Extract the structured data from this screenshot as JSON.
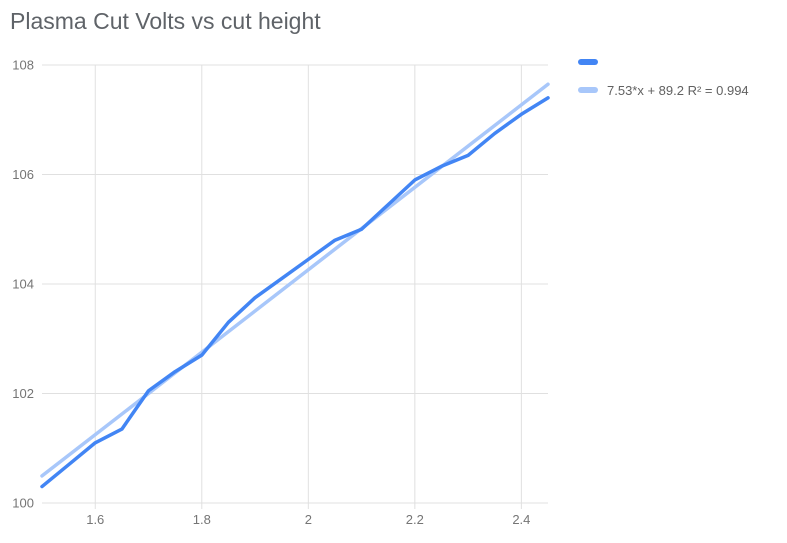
{
  "title": "Plasma Cut Volts vs cut height",
  "colors": {
    "series": "#4285f4",
    "trendline": "#a8c7fa",
    "grid": "#e0e0e0",
    "axis_text": "#757575",
    "title_text": "#5f6368",
    "background": "#ffffff"
  },
  "legend": {
    "position": "right",
    "items": [
      {
        "label": "",
        "color": "#4285f4"
      },
      {
        "label": "7.53*x + 89.2 R² = 0.994",
        "color": "#a8c7fa"
      }
    ]
  },
  "chart_data": {
    "type": "line",
    "title": "Plasma Cut Volts vs cut height",
    "xlabel": "",
    "ylabel": "",
    "xlim": [
      1.5,
      2.45
    ],
    "ylim": [
      100,
      108
    ],
    "x_ticks": [
      1.6,
      1.8,
      2,
      2.2,
      2.4
    ],
    "x_tick_labels": [
      "1.6",
      "1.8",
      "2",
      "2.2",
      "2.4"
    ],
    "y_ticks": [
      100,
      102,
      104,
      106,
      108
    ],
    "y_tick_labels": [
      "100",
      "102",
      "104",
      "106",
      "108"
    ],
    "grid": true,
    "legend_position": "right",
    "series": [
      {
        "name": "",
        "kind": "data",
        "color": "#4285f4",
        "x": [
          1.5,
          1.55,
          1.6,
          1.65,
          1.7,
          1.75,
          1.8,
          1.85,
          1.9,
          1.95,
          2.0,
          2.05,
          2.1,
          2.15,
          2.2,
          2.25,
          2.3,
          2.35,
          2.4,
          2.45
        ],
        "y": [
          100.3,
          100.7,
          101.1,
          101.35,
          102.05,
          102.4,
          102.7,
          103.3,
          103.75,
          104.1,
          104.45,
          104.8,
          105.0,
          105.45,
          105.9,
          106.15,
          106.35,
          106.75,
          107.1,
          107.4
        ]
      },
      {
        "name": "7.53*x + 89.2 R² = 0.994",
        "kind": "trendline",
        "color": "#a8c7fa",
        "slope": 7.53,
        "intercept": 89.2,
        "r_squared": 0.994
      }
    ]
  }
}
